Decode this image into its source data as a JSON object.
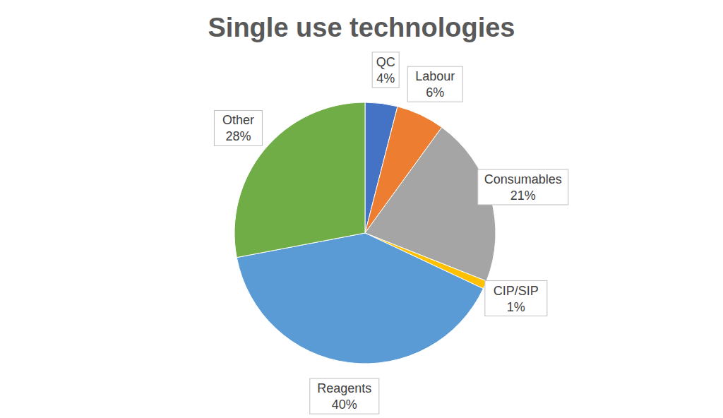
{
  "chart_data": {
    "type": "pie",
    "title": "Single use technologies",
    "categories": [
      "QC",
      "Labour",
      "Consumables",
      "CIP/SIP",
      "Reagents",
      "Other"
    ],
    "values": [
      4,
      6,
      21,
      1,
      40,
      28
    ],
    "value_labels": [
      "4%",
      "6%",
      "21%",
      "1%",
      "40%",
      "28%"
    ],
    "colors": [
      "#4472c4",
      "#ed7d31",
      "#a5a5a5",
      "#ffc000",
      "#5b9bd5",
      "#70ad47"
    ],
    "data_labels": true
  }
}
